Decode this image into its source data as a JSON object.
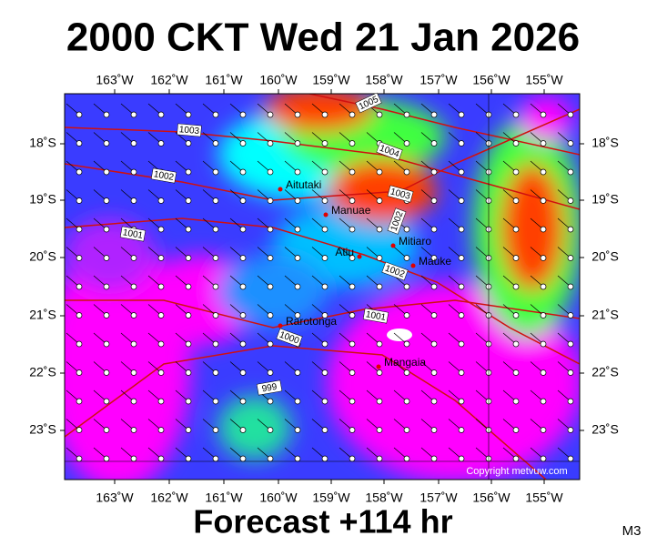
{
  "title": "2000 CKT Wed 21 Jan 2026",
  "footer": "Forecast +114 hr",
  "corner_label": "M3",
  "copyright": "Copyright metvuw.com",
  "map": {
    "lon_labels": [
      "163˚W",
      "162˚W",
      "161˚W",
      "160˚W",
      "159˚W",
      "158˚W",
      "157˚W",
      "156˚W",
      "155˚W"
    ],
    "lat_labels": [
      "18˚S",
      "19˚S",
      "20˚S",
      "21˚S",
      "22˚S",
      "23˚S"
    ],
    "places": [
      {
        "name": "Aitutaki"
      },
      {
        "name": "Manuae"
      },
      {
        "name": "Atiu"
      },
      {
        "name": "Mitiaro"
      },
      {
        "name": "Mauke"
      },
      {
        "name": "Rarotonga"
      },
      {
        "name": "Mangaia"
      }
    ],
    "isobars": [
      {
        "label": "1005"
      },
      {
        "label": "1003"
      },
      {
        "label": "1004"
      },
      {
        "label": "1002"
      },
      {
        "label": "1003"
      },
      {
        "label": "1002"
      },
      {
        "label": "1001"
      },
      {
        "label": "1002"
      },
      {
        "label": "1001"
      },
      {
        "label": "1000"
      },
      {
        "label": "999"
      }
    ]
  }
}
